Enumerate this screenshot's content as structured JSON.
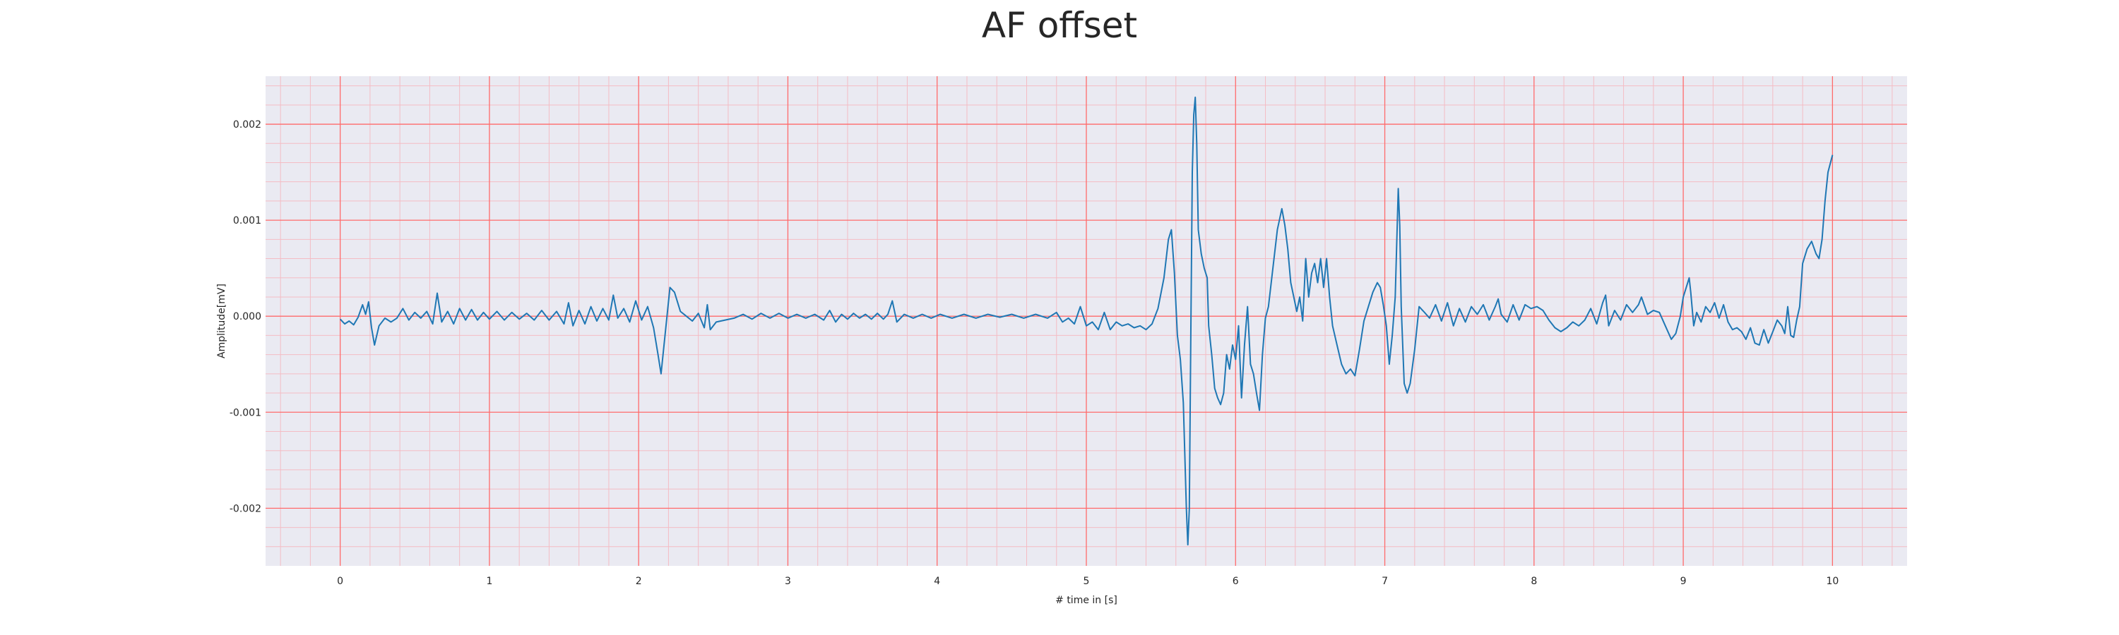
{
  "chart_data": {
    "type": "line",
    "title": "AF offset",
    "xlabel": "# time in [s]",
    "ylabel": "Amplitude[mV]",
    "xlim": [
      -0.5,
      10.5
    ],
    "ylim": [
      -0.0026,
      0.0025
    ],
    "x_ticks": [
      "0",
      "1",
      "2",
      "3",
      "4",
      "5",
      "6",
      "7",
      "8",
      "9",
      "10"
    ],
    "y_ticks": [
      "-0.002",
      "-0.001",
      "0.000",
      "0.001",
      "0.002"
    ],
    "grid": true,
    "colors": {
      "plot_background": "#eaeaf2",
      "major_grid": "#ff6b6b",
      "minor_grid": "#f4bcc4",
      "line": "#1f77b4"
    },
    "series": [
      {
        "values": [
          [
            0.0,
            -3e-05
          ],
          [
            0.03,
            -8e-05
          ],
          [
            0.06,
            -5e-05
          ],
          [
            0.09,
            -9e-05
          ],
          [
            0.12,
            -1e-05
          ],
          [
            0.15,
            0.00012
          ],
          [
            0.17,
            2e-05
          ],
          [
            0.19,
            0.00015
          ],
          [
            0.21,
            -0.00012
          ],
          [
            0.23,
            -0.0003
          ],
          [
            0.26,
            -0.0001
          ],
          [
            0.3,
            -2e-05
          ],
          [
            0.34,
            -6e-05
          ],
          [
            0.38,
            -2e-05
          ],
          [
            0.42,
            8e-05
          ],
          [
            0.46,
            -4e-05
          ],
          [
            0.5,
            4e-05
          ],
          [
            0.54,
            -2e-05
          ],
          [
            0.58,
            5e-05
          ],
          [
            0.62,
            -8e-05
          ],
          [
            0.65,
            0.00024
          ],
          [
            0.68,
            -6e-05
          ],
          [
            0.72,
            5e-05
          ],
          [
            0.76,
            -8e-05
          ],
          [
            0.8,
            8e-05
          ],
          [
            0.84,
            -4e-05
          ],
          [
            0.88,
            7e-05
          ],
          [
            0.92,
            -4e-05
          ],
          [
            0.96,
            4e-05
          ],
          [
            1.0,
            -3e-05
          ],
          [
            1.05,
            5e-05
          ],
          [
            1.1,
            -4e-05
          ],
          [
            1.15,
            4e-05
          ],
          [
            1.2,
            -3e-05
          ],
          [
            1.25,
            3e-05
          ],
          [
            1.3,
            -4e-05
          ],
          [
            1.35,
            6e-05
          ],
          [
            1.4,
            -4e-05
          ],
          [
            1.45,
            5e-05
          ],
          [
            1.5,
            -8e-05
          ],
          [
            1.53,
            0.00014
          ],
          [
            1.56,
            -0.0001
          ],
          [
            1.6,
            6e-05
          ],
          [
            1.64,
            -8e-05
          ],
          [
            1.68,
            0.0001
          ],
          [
            1.72,
            -5e-05
          ],
          [
            1.76,
            8e-05
          ],
          [
            1.8,
            -4e-05
          ],
          [
            1.83,
            0.00022
          ],
          [
            1.86,
            -2e-05
          ],
          [
            1.9,
            8e-05
          ],
          [
            1.94,
            -6e-05
          ],
          [
            1.98,
            0.00016
          ],
          [
            2.02,
            -4e-05
          ],
          [
            2.06,
            0.0001
          ],
          [
            2.1,
            -0.00012
          ],
          [
            2.13,
            -0.0004
          ],
          [
            2.15,
            -0.0006
          ],
          [
            2.18,
            -0.00015
          ],
          [
            2.21,
            0.0003
          ],
          [
            2.24,
            0.00025
          ],
          [
            2.28,
            5e-05
          ],
          [
            2.32,
            0.0
          ],
          [
            2.36,
            -5e-05
          ],
          [
            2.4,
            3e-05
          ],
          [
            2.44,
            -0.00012
          ],
          [
            2.46,
            0.00012
          ],
          [
            2.48,
            -0.00014
          ],
          [
            2.52,
            -6e-05
          ],
          [
            2.58,
            -4e-05
          ],
          [
            2.64,
            -2e-05
          ],
          [
            2.7,
            2e-05
          ],
          [
            2.76,
            -3e-05
          ],
          [
            2.82,
            3e-05
          ],
          [
            2.88,
            -2e-05
          ],
          [
            2.94,
            3e-05
          ],
          [
            3.0,
            -2e-05
          ],
          [
            3.06,
            2e-05
          ],
          [
            3.12,
            -2e-05
          ],
          [
            3.18,
            2e-05
          ],
          [
            3.24,
            -4e-05
          ],
          [
            3.28,
            6e-05
          ],
          [
            3.32,
            -6e-05
          ],
          [
            3.36,
            2e-05
          ],
          [
            3.4,
            -3e-05
          ],
          [
            3.44,
            3e-05
          ],
          [
            3.48,
            -2e-05
          ],
          [
            3.52,
            2e-05
          ],
          [
            3.56,
            -3e-05
          ],
          [
            3.6,
            3e-05
          ],
          [
            3.64,
            -3e-05
          ],
          [
            3.67,
            2e-05
          ],
          [
            3.7,
            0.00016
          ],
          [
            3.73,
            -6e-05
          ],
          [
            3.78,
            2e-05
          ],
          [
            3.84,
            -2e-05
          ],
          [
            3.9,
            2e-05
          ],
          [
            3.96,
            -2e-05
          ],
          [
            4.02,
            2e-05
          ],
          [
            4.1,
            -2e-05
          ],
          [
            4.18,
            2e-05
          ],
          [
            4.26,
            -2e-05
          ],
          [
            4.34,
            2e-05
          ],
          [
            4.42,
            -1e-05
          ],
          [
            4.5,
            2e-05
          ],
          [
            4.58,
            -2e-05
          ],
          [
            4.66,
            2e-05
          ],
          [
            4.74,
            -2e-05
          ],
          [
            4.8,
            4e-05
          ],
          [
            4.84,
            -6e-05
          ],
          [
            4.88,
            -2e-05
          ],
          [
            4.92,
            -8e-05
          ],
          [
            4.96,
            0.0001
          ],
          [
            5.0,
            -0.0001
          ],
          [
            5.04,
            -6e-05
          ],
          [
            5.08,
            -0.00014
          ],
          [
            5.12,
            4e-05
          ],
          [
            5.16,
            -0.00014
          ],
          [
            5.2,
            -6e-05
          ],
          [
            5.24,
            -0.0001
          ],
          [
            5.28,
            -8e-05
          ],
          [
            5.32,
            -0.00012
          ],
          [
            5.36,
            -0.0001
          ],
          [
            5.4,
            -0.00014
          ],
          [
            5.44,
            -8e-05
          ],
          [
            5.48,
            8e-05
          ],
          [
            5.52,
            0.0004
          ],
          [
            5.55,
            0.0008
          ],
          [
            5.57,
            0.0009
          ],
          [
            5.59,
            0.00045
          ],
          [
            5.61,
            -0.0002
          ],
          [
            5.63,
            -0.00045
          ],
          [
            5.65,
            -0.0009
          ],
          [
            5.67,
            -0.002
          ],
          [
            5.68,
            -0.00238
          ],
          [
            5.69,
            -0.002
          ],
          [
            5.7,
            -0.0002
          ],
          [
            5.71,
            0.0015
          ],
          [
            5.72,
            0.0021
          ],
          [
            5.73,
            0.00228
          ],
          [
            5.74,
            0.0018
          ],
          [
            5.75,
            0.0009
          ],
          [
            5.77,
            0.00065
          ],
          [
            5.79,
            0.0005
          ],
          [
            5.81,
            0.0004
          ],
          [
            5.82,
            -0.0001
          ],
          [
            5.84,
            -0.0004
          ],
          [
            5.86,
            -0.00075
          ],
          [
            5.88,
            -0.00085
          ],
          [
            5.9,
            -0.00092
          ],
          [
            5.92,
            -0.0008
          ],
          [
            5.94,
            -0.0004
          ],
          [
            5.96,
            -0.00055
          ],
          [
            5.98,
            -0.0003
          ],
          [
            6.0,
            -0.00045
          ],
          [
            6.02,
            -0.0001
          ],
          [
            6.04,
            -0.00085
          ],
          [
            6.06,
            -0.0003
          ],
          [
            6.08,
            0.0001
          ],
          [
            6.1,
            -0.0005
          ],
          [
            6.12,
            -0.0006
          ],
          [
            6.14,
            -0.0008
          ],
          [
            6.16,
            -0.00098
          ],
          [
            6.18,
            -0.0004
          ],
          [
            6.2,
            -2e-05
          ],
          [
            6.22,
            0.0001
          ],
          [
            6.25,
            0.0005
          ],
          [
            6.28,
            0.0009
          ],
          [
            6.31,
            0.00112
          ],
          [
            6.33,
            0.00095
          ],
          [
            6.35,
            0.0007
          ],
          [
            6.37,
            0.00035
          ],
          [
            6.39,
            0.0002
          ],
          [
            6.41,
            5e-05
          ],
          [
            6.43,
            0.0002
          ],
          [
            6.45,
            -5e-05
          ],
          [
            6.47,
            0.0006
          ],
          [
            6.49,
            0.0002
          ],
          [
            6.51,
            0.00045
          ],
          [
            6.53,
            0.00055
          ],
          [
            6.55,
            0.00035
          ],
          [
            6.57,
            0.0006
          ],
          [
            6.59,
            0.0003
          ],
          [
            6.61,
            0.0006
          ],
          [
            6.63,
            0.0002
          ],
          [
            6.65,
            -0.0001
          ],
          [
            6.68,
            -0.0003
          ],
          [
            6.71,
            -0.0005
          ],
          [
            6.74,
            -0.0006
          ],
          [
            6.77,
            -0.00055
          ],
          [
            6.8,
            -0.00062
          ],
          [
            6.83,
            -0.00035
          ],
          [
            6.86,
            -5e-05
          ],
          [
            6.89,
            0.0001
          ],
          [
            6.92,
            0.00025
          ],
          [
            6.95,
            0.00035
          ],
          [
            6.97,
            0.0003
          ],
          [
            6.99,
            0.00012
          ],
          [
            7.01,
            -0.0001
          ],
          [
            7.03,
            -0.0005
          ],
          [
            7.05,
            -0.0002
          ],
          [
            7.07,
            0.0002
          ],
          [
            7.09,
            0.00133
          ],
          [
            7.1,
            0.00095
          ],
          [
            7.11,
            0.0001
          ],
          [
            7.13,
            -0.0007
          ],
          [
            7.15,
            -0.0008
          ],
          [
            7.17,
            -0.0007
          ],
          [
            7.2,
            -0.00035
          ],
          [
            7.23,
            0.0001
          ],
          [
            7.26,
            5e-05
          ],
          [
            7.3,
            -2e-05
          ],
          [
            7.34,
            0.00012
          ],
          [
            7.38,
            -5e-05
          ],
          [
            7.42,
            0.00014
          ],
          [
            7.46,
            -0.0001
          ],
          [
            7.5,
            8e-05
          ],
          [
            7.54,
            -6e-05
          ],
          [
            7.58,
            0.0001
          ],
          [
            7.62,
            2e-05
          ],
          [
            7.66,
            0.00012
          ],
          [
            7.7,
            -4e-05
          ],
          [
            7.74,
            0.0001
          ],
          [
            7.76,
            0.00018
          ],
          [
            7.78,
            2e-05
          ],
          [
            7.82,
            -6e-05
          ],
          [
            7.86,
            0.00012
          ],
          [
            7.9,
            -4e-05
          ],
          [
            7.94,
            0.00012
          ],
          [
            7.98,
            8e-05
          ],
          [
            8.02,
            0.0001
          ],
          [
            8.06,
            6e-05
          ],
          [
            8.1,
            -4e-05
          ],
          [
            8.14,
            -0.00012
          ],
          [
            8.18,
            -0.00016
          ],
          [
            8.22,
            -0.00012
          ],
          [
            8.26,
            -6e-05
          ],
          [
            8.3,
            -0.0001
          ],
          [
            8.34,
            -4e-05
          ],
          [
            8.38,
            8e-05
          ],
          [
            8.42,
            -8e-05
          ],
          [
            8.46,
            0.00014
          ],
          [
            8.48,
            0.00022
          ],
          [
            8.5,
            -0.0001
          ],
          [
            8.54,
            6e-05
          ],
          [
            8.58,
            -4e-05
          ],
          [
            8.62,
            0.00012
          ],
          [
            8.66,
            4e-05
          ],
          [
            8.7,
            0.00012
          ],
          [
            8.72,
            0.0002
          ],
          [
            8.76,
            2e-05
          ],
          [
            8.8,
            6e-05
          ],
          [
            8.84,
            4e-05
          ],
          [
            8.88,
            -0.0001
          ],
          [
            8.92,
            -0.00024
          ],
          [
            8.95,
            -0.00018
          ],
          [
            8.98,
            0.0
          ],
          [
            9.0,
            0.0002
          ],
          [
            9.02,
            0.0003
          ],
          [
            9.04,
            0.0004
          ],
          [
            9.05,
            0.00025
          ],
          [
            9.07,
            -0.0001
          ],
          [
            9.09,
            4e-05
          ],
          [
            9.12,
            -6e-05
          ],
          [
            9.15,
            0.0001
          ],
          [
            9.18,
            4e-05
          ],
          [
            9.21,
            0.00014
          ],
          [
            9.24,
            -2e-05
          ],
          [
            9.27,
            0.00012
          ],
          [
            9.3,
            -6e-05
          ],
          [
            9.33,
            -0.00014
          ],
          [
            9.36,
            -0.00012
          ],
          [
            9.39,
            -0.00016
          ],
          [
            9.42,
            -0.00024
          ],
          [
            9.45,
            -0.00012
          ],
          [
            9.48,
            -0.00028
          ],
          [
            9.51,
            -0.0003
          ],
          [
            9.54,
            -0.00014
          ],
          [
            9.57,
            -0.00028
          ],
          [
            9.6,
            -0.00016
          ],
          [
            9.63,
            -4e-05
          ],
          [
            9.66,
            -0.0001
          ],
          [
            9.68,
            -0.00018
          ],
          [
            9.7,
            0.0001
          ],
          [
            9.72,
            -0.0002
          ],
          [
            9.74,
            -0.00022
          ],
          [
            9.76,
            -4e-05
          ],
          [
            9.78,
            0.0001
          ],
          [
            9.8,
            0.00055
          ],
          [
            9.83,
            0.0007
          ],
          [
            9.86,
            0.00078
          ],
          [
            9.89,
            0.00065
          ],
          [
            9.91,
            0.0006
          ],
          [
            9.93,
            0.0008
          ],
          [
            9.95,
            0.0012
          ],
          [
            9.97,
            0.0015
          ],
          [
            10.0,
            0.00168
          ]
        ]
      }
    ]
  }
}
